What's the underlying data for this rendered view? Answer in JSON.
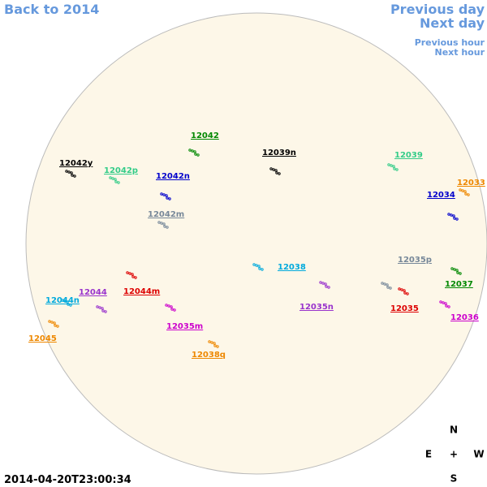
{
  "navigation": {
    "back": "Back to 2014",
    "previous_day": "Previous day",
    "next_day": "Next day",
    "previous_hour": "Previous hour",
    "next_hour": "Next hour"
  },
  "regions": [
    {
      "label": "12042",
      "color": "#008800"
    },
    {
      "label": "12042y",
      "color": "#000000"
    },
    {
      "label": "12042p",
      "color": "#33cc88"
    },
    {
      "label": "12042n",
      "color": "#0000cc"
    },
    {
      "label": "12042m",
      "color": "#778899"
    },
    {
      "label": "12039n",
      "color": "#000000"
    },
    {
      "label": "12039",
      "color": "#33cc88"
    },
    {
      "label": "12033",
      "color": "#ee8800"
    },
    {
      "label": "12034",
      "color": "#0000cc"
    },
    {
      "label": "12035p",
      "color": "#778899"
    },
    {
      "label": "12038",
      "color": "#00aadd"
    },
    {
      "label": "12037",
      "color": "#008800"
    },
    {
      "label": "12044",
      "color": "#9933cc"
    },
    {
      "label": "12044m",
      "color": "#dd0000"
    },
    {
      "label": "12044n",
      "color": "#00aadd"
    },
    {
      "label": "12035n",
      "color": "#9933cc"
    },
    {
      "label": "12035",
      "color": "#dd0000"
    },
    {
      "label": "12036",
      "color": "#cc00cc"
    },
    {
      "label": "12045",
      "color": "#ee8800"
    },
    {
      "label": "12035m",
      "color": "#cc00cc"
    },
    {
      "label": "12038q",
      "color": "#ee8800"
    }
  ],
  "compass": {
    "north": "N",
    "east": "E",
    "center": "+",
    "west": "W",
    "south": "S"
  },
  "timestamp": "2014-04-20T23:00:34"
}
